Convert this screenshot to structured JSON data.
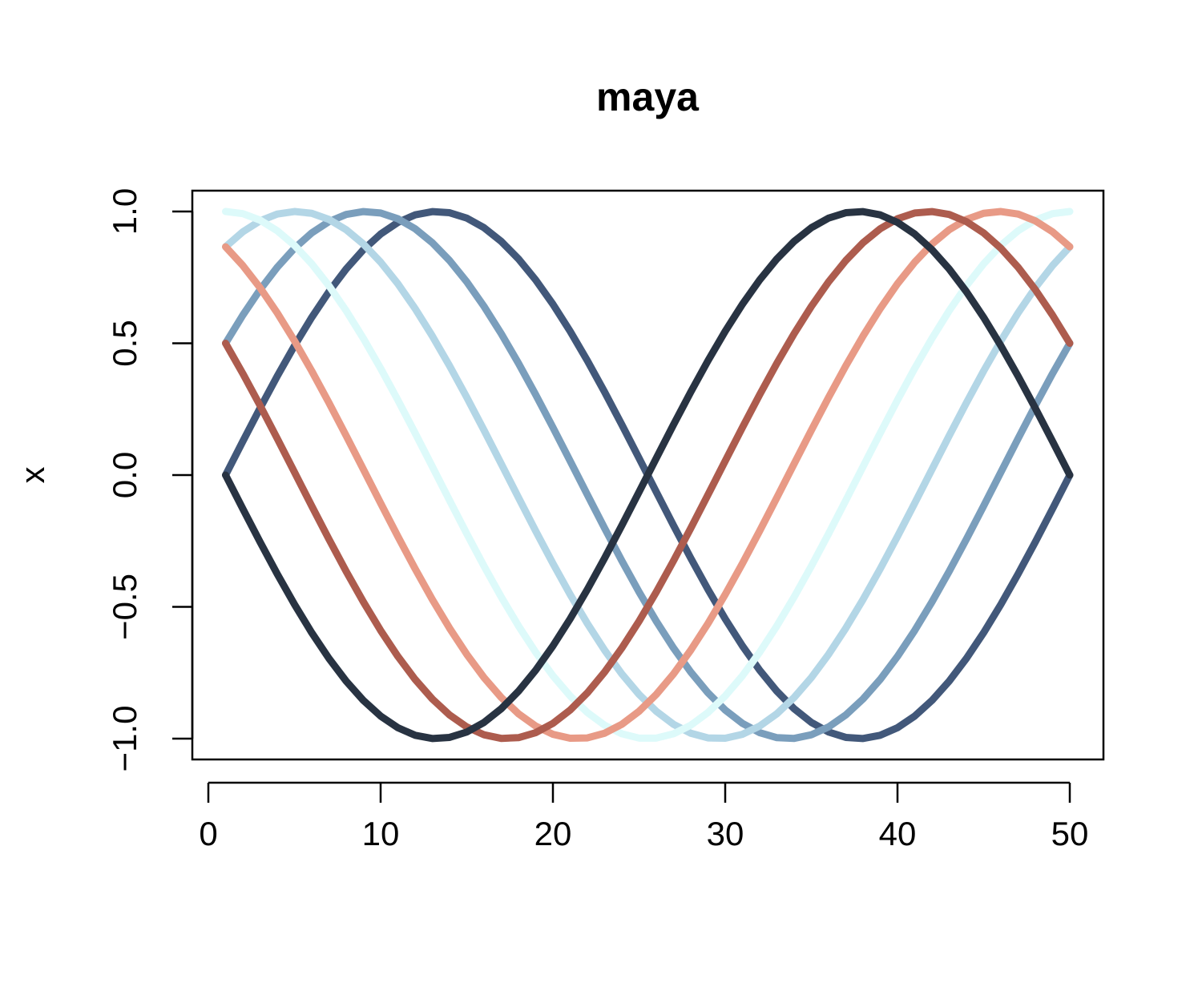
{
  "chart_data": {
    "type": "line",
    "title": "maya",
    "xlabel": "",
    "ylabel": "x",
    "xlim": [
      0,
      52
    ],
    "ylim": [
      -1.0,
      1.0
    ],
    "xticks": [
      0,
      10,
      20,
      30,
      40,
      50
    ],
    "xtick_labels": [
      "0",
      "10",
      "20",
      "30",
      "40",
      "50"
    ],
    "yticks": [
      -1.0,
      -0.5,
      0.0,
      0.5,
      1.0
    ],
    "ytick_labels": [
      "−1.0",
      "−0.5",
      "0.0",
      "0.5",
      "1.0"
    ],
    "grid": false,
    "legend": "none",
    "x_range": [
      1,
      50
    ],
    "series": [
      {
        "formula": "sin",
        "phase_deg": 0,
        "color": "#42587a"
      },
      {
        "formula": "sin",
        "phase_deg": 30,
        "color": "#7a9ebc"
      },
      {
        "formula": "sin",
        "phase_deg": 60,
        "color": "#b3d6e6"
      },
      {
        "formula": "sin",
        "phase_deg": 90,
        "color": "#ddfafa"
      },
      {
        "formula": "sin",
        "phase_deg": 120,
        "color": "#e89a86"
      },
      {
        "formula": "sin",
        "phase_deg": 150,
        "color": "#ad5c4e"
      },
      {
        "formula": "sin",
        "phase_deg": 180,
        "color": "#283342"
      }
    ]
  }
}
